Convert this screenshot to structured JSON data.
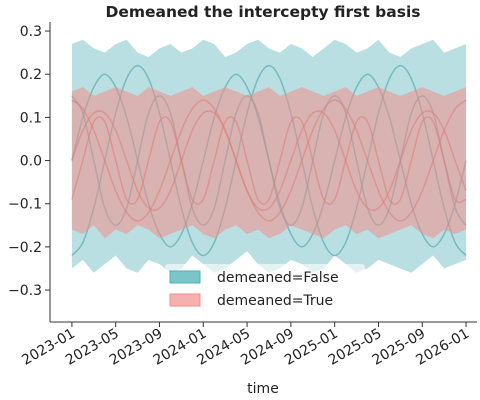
{
  "chart_data": {
    "type": "band-lines",
    "title": "Demeaned the intercepty first basis",
    "x_label": "time",
    "x": [
      "2023-01",
      "2023-02",
      "2023-03",
      "2023-04",
      "2023-05",
      "2023-06",
      "2023-07",
      "2023-08",
      "2023-09",
      "2023-10",
      "2023-11",
      "2023-12",
      "2024-01",
      "2024-02",
      "2024-03",
      "2024-04",
      "2024-05",
      "2024-06",
      "2024-07",
      "2024-08",
      "2024-09",
      "2024-10",
      "2024-11",
      "2024-12",
      "2025-01",
      "2025-02",
      "2025-03",
      "2025-04",
      "2025-05",
      "2025-06",
      "2025-07",
      "2025-08",
      "2025-09",
      "2025-10",
      "2025-11",
      "2025-12",
      "2026-01"
    ],
    "xlim": [
      "2022-11",
      "2026-02"
    ],
    "xticks": [
      "2023-01",
      "2023-05",
      "2023-09",
      "2024-01",
      "2024-05",
      "2024-09",
      "2025-01",
      "2025-05",
      "2025-09",
      "2026-01"
    ],
    "ylim": [
      -0.374,
      0.321
    ],
    "yticks": [
      0.3,
      0.2,
      0.1,
      {
        "value": 0,
        "label": "0.0"
      },
      {
        "value": -0.1,
        "label": "−0.1"
      },
      {
        "value": -0.2,
        "label": "−0.2"
      },
      {
        "value": -0.3,
        "label": "−0.3"
      }
    ],
    "legend": "lower center",
    "series": [
      {
        "name": "demeaned=False",
        "color": "#4fb0b6",
        "upper": [
          0.27,
          0.28,
          0.26,
          0.25,
          0.27,
          0.28,
          0.25,
          0.24,
          0.26,
          0.27,
          0.25,
          0.26,
          0.28,
          0.27,
          0.24,
          0.25,
          0.27,
          0.28,
          0.26,
          0.25,
          0.27,
          0.26,
          0.24,
          0.26,
          0.28,
          0.27,
          0.25,
          0.26,
          0.28,
          0.25,
          0.24,
          0.26,
          0.27,
          0.28,
          0.25,
          0.26,
          0.27
        ],
        "lower": [
          -0.25,
          -0.23,
          -0.26,
          -0.24,
          -0.22,
          -0.25,
          -0.26,
          -0.23,
          -0.24,
          -0.26,
          -0.25,
          -0.22,
          -0.24,
          -0.26,
          -0.25,
          -0.23,
          -0.21,
          -0.24,
          -0.26,
          -0.25,
          -0.23,
          -0.24,
          -0.26,
          -0.25,
          -0.22,
          -0.24,
          -0.26,
          -0.25,
          -0.23,
          -0.24,
          -0.25,
          -0.26,
          -0.24,
          -0.22,
          -0.25,
          -0.24,
          -0.23
        ],
        "lines": [
          [
            0,
            0.1,
            0.17,
            0.2,
            0.17,
            0.1,
            0,
            -0.1,
            -0.17,
            -0.2,
            -0.17,
            -0.1,
            0,
            0.1,
            0.17,
            0.2,
            0.17,
            0.1,
            0,
            -0.1,
            -0.17,
            -0.2,
            -0.17,
            -0.1,
            0,
            0.1,
            0.17,
            0.2,
            0.17,
            0.1,
            0,
            -0.1,
            -0.17,
            -0.2,
            -0.17,
            -0.1,
            0
          ],
          [
            0.15,
            0.11,
            0,
            -0.11,
            -0.15,
            -0.11,
            0,
            0.11,
            0.15,
            0.11,
            0,
            -0.11,
            -0.15,
            -0.11,
            0,
            0.11,
            0.15,
            0.11,
            0,
            -0.11,
            -0.15,
            -0.11,
            0,
            0.11,
            0.15,
            0.11,
            0,
            -0.11,
            -0.15,
            -0.11,
            0,
            0.11,
            0.15,
            0.11,
            0,
            -0.11,
            -0.15
          ],
          [
            -0.22,
            -0.19,
            -0.11,
            0,
            0.11,
            0.19,
            0.22,
            0.19,
            0.11,
            0,
            -0.11,
            -0.19,
            -0.22,
            -0.19,
            -0.11,
            0,
            0.11,
            0.19,
            0.22,
            0.19,
            0.11,
            0,
            -0.11,
            -0.19,
            -0.22,
            -0.19,
            -0.11,
            0,
            0.11,
            0.19,
            0.22,
            0.19,
            0.11,
            0,
            -0.11,
            -0.19,
            -0.22
          ]
        ]
      },
      {
        "name": "demeaned=True",
        "color": "#f28e8a",
        "upper": [
          0.16,
          0.17,
          0.15,
          0.16,
          0.17,
          0.16,
          0.15,
          0.17,
          0.16,
          0.15,
          0.16,
          0.17,
          0.15,
          0.16,
          0.17,
          0.16,
          0.15,
          0.16,
          0.17,
          0.15,
          0.16,
          0.17,
          0.16,
          0.15,
          0.16,
          0.17,
          0.15,
          0.16,
          0.17,
          0.16,
          0.15,
          0.16,
          0.17,
          0.16,
          0.15,
          0.16,
          0.17
        ],
        "lower": [
          -0.16,
          -0.17,
          -0.15,
          -0.18,
          -0.16,
          -0.17,
          -0.15,
          -0.16,
          -0.18,
          -0.17,
          -0.16,
          -0.15,
          -0.17,
          -0.18,
          -0.16,
          -0.15,
          -0.17,
          -0.16,
          -0.18,
          -0.17,
          -0.15,
          -0.16,
          -0.17,
          -0.18,
          -0.16,
          -0.15,
          -0.17,
          -0.16,
          -0.18,
          -0.17,
          -0.16,
          -0.15,
          -0.17,
          -0.18,
          -0.16,
          -0.17,
          -0.16
        ],
        "lines": [
          [
            0,
            0.07,
            0.11,
            0.11,
            0.07,
            0,
            -0.07,
            -0.11,
            -0.11,
            -0.07,
            0,
            0.07,
            0.11,
            0.11,
            0.07,
            0,
            -0.07,
            -0.11,
            -0.11,
            -0.07,
            0,
            0.07,
            0.11,
            0.11,
            0.07,
            0,
            -0.07,
            -0.11,
            -0.11,
            -0.07,
            0,
            0.07,
            0.11,
            0.11,
            0.07,
            0,
            -0.07
          ],
          [
            0.14,
            0.12,
            0.07,
            0,
            -0.07,
            -0.12,
            -0.14,
            -0.12,
            -0.07,
            0,
            0.07,
            0.12,
            0.14,
            0.12,
            0.07,
            0,
            -0.07,
            -0.12,
            -0.14,
            -0.12,
            -0.07,
            0,
            0.07,
            0.12,
            0.14,
            0.12,
            0.07,
            0,
            -0.07,
            -0.12,
            -0.14,
            -0.12,
            -0.07,
            0,
            0.07,
            0.12,
            0.14
          ],
          [
            -0.09,
            0,
            0.09,
            0.09,
            0,
            -0.09,
            -0.09,
            0,
            0.09,
            0.09,
            0,
            -0.09,
            -0.09,
            0,
            0.09,
            0.09,
            0,
            -0.09,
            -0.09,
            0,
            0.09,
            0.09,
            0,
            -0.09,
            -0.09,
            0,
            0.09,
            0.09,
            0,
            -0.09,
            -0.09,
            0,
            0.09,
            0.09,
            0,
            -0.09,
            -0.09
          ]
        ]
      }
    ]
  }
}
